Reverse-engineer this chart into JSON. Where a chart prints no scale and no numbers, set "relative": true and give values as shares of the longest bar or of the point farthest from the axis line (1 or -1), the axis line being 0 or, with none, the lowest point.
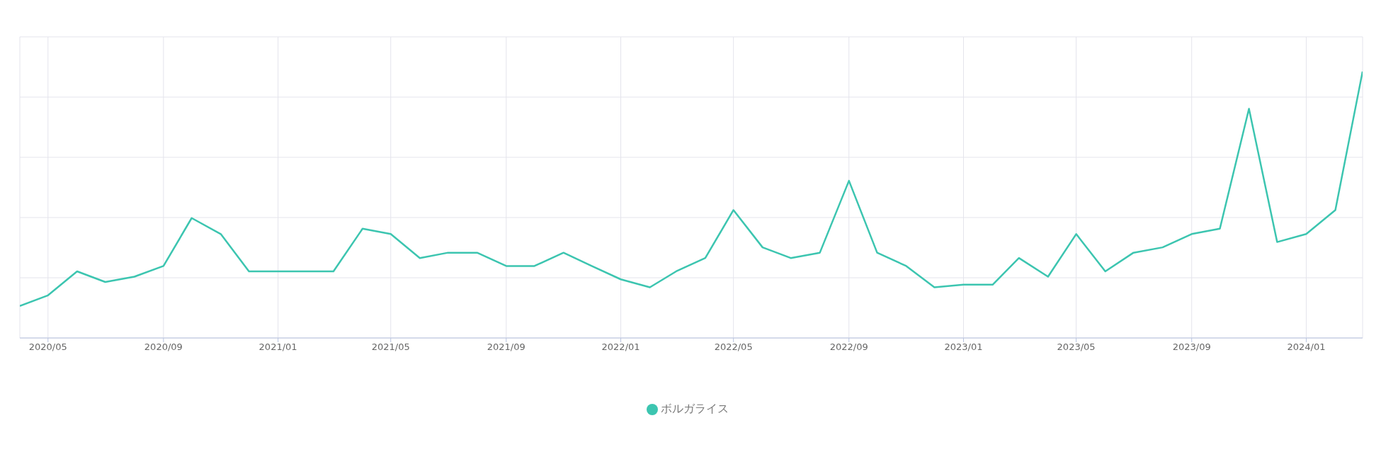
{
  "chart_data": {
    "type": "line",
    "relative": true,
    "x": [
      "2020-04",
      "2020-05",
      "2020-06",
      "2020-07",
      "2020-08",
      "2020-09",
      "2020-10",
      "2020-11",
      "2020-12",
      "2021-01",
      "2021-02",
      "2021-03",
      "2021-04",
      "2021-05",
      "2021-06",
      "2021-07",
      "2021-08",
      "2021-09",
      "2021-10",
      "2021-11",
      "2021-12",
      "2022-01",
      "2022-02",
      "2022-03",
      "2022-04",
      "2022-05",
      "2022-06",
      "2022-07",
      "2022-08",
      "2022-09",
      "2022-10",
      "2022-11",
      "2022-12",
      "2023-01",
      "2023-02",
      "2023-03",
      "2023-04",
      "2023-05",
      "2023-06",
      "2023-07",
      "2023-08",
      "2023-09",
      "2023-10",
      "2023-11",
      "2023-12",
      "2024-01",
      "2024-02",
      "2024-03"
    ],
    "series": [
      {
        "name": "ボルガライス",
        "color": "#3cc5b0",
        "values": [
          0.12,
          0.16,
          0.25,
          0.21,
          0.23,
          0.27,
          0.45,
          0.39,
          0.25,
          0.25,
          0.25,
          0.25,
          0.41,
          0.39,
          0.3,
          0.32,
          0.32,
          0.27,
          0.27,
          0.32,
          0.27,
          0.22,
          0.19,
          0.25,
          0.3,
          0.48,
          0.34,
          0.3,
          0.32,
          0.59,
          0.32,
          0.27,
          0.19,
          0.2,
          0.2,
          0.3,
          0.23,
          0.39,
          0.25,
          0.32,
          0.34,
          0.39,
          0.41,
          0.86,
          0.36,
          0.39,
          0.48,
          1.0
        ]
      }
    ],
    "xlim": [
      "2020-04",
      "2024-03"
    ],
    "xticks": [
      {
        "value": "2020-05",
        "label": "2020/05"
      },
      {
        "value": "2020-09",
        "label": "2020/09"
      },
      {
        "value": "2021-01",
        "label": "2021/01"
      },
      {
        "value": "2021-05",
        "label": "2021/05"
      },
      {
        "value": "2021-09",
        "label": "2021/09"
      },
      {
        "value": "2022-01",
        "label": "2022/01"
      },
      {
        "value": "2022-05",
        "label": "2022/05"
      },
      {
        "value": "2022-09",
        "label": "2022/09"
      },
      {
        "value": "2023-01",
        "label": "2023/01"
      },
      {
        "value": "2023-05",
        "label": "2023/05"
      },
      {
        "value": "2023-09",
        "label": "2023/09"
      },
      {
        "value": "2024-01",
        "label": "2024/01"
      }
    ],
    "grid": true,
    "legend": "bottom",
    "marker": "none",
    "line_style": "solid"
  }
}
